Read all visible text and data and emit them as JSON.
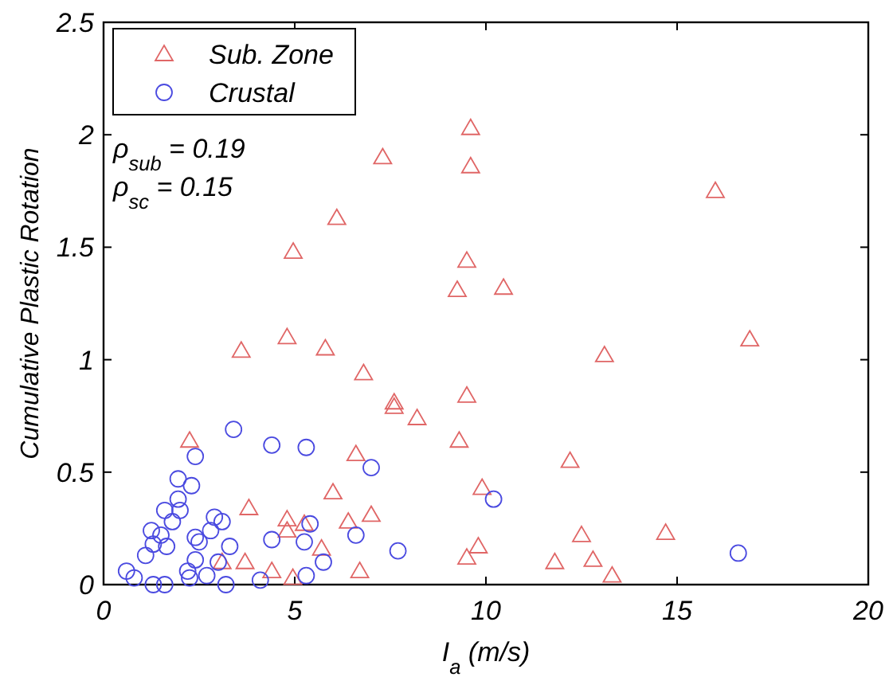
{
  "chart_data": {
    "type": "scatter",
    "xlabel": "I$_{a}$ (m/s)",
    "ylabel": "Cumulative Plastic Rotation",
    "xlim": [
      0,
      20
    ],
    "ylim": [
      0,
      2.5
    ],
    "xticks": [
      0,
      5,
      10,
      15,
      20
    ],
    "yticks": [
      0,
      0.5,
      1,
      1.5,
      2,
      2.5
    ],
    "grid": false,
    "legend": "top left",
    "annotations": [
      "ρ$_{sub}$ = 0.19",
      "ρ$_{sc}$ = 0.15"
    ],
    "series": [
      {
        "name": "Sub. Zone",
        "color": "#e06666",
        "marker": "triangle",
        "x": [
          9.6,
          7.3,
          9.6,
          6.1,
          4.96,
          9.5,
          9.25,
          16.0,
          10.46,
          3.6,
          4.8,
          5.8,
          6.8,
          7.6,
          7.6,
          8.2,
          9.5,
          2.25,
          9.3,
          6.6,
          6.0,
          3.8,
          7.0,
          4.8,
          4.8,
          5.25,
          6.4,
          5.7,
          3.7,
          3.1,
          4.4,
          6.7,
          4.95,
          9.9,
          9.8,
          9.5,
          16.9,
          13.1,
          12.2,
          12.5,
          14.7,
          11.8,
          12.8,
          13.3
        ],
        "values": [
          2.03,
          1.9,
          1.86,
          1.63,
          1.48,
          1.44,
          1.31,
          1.75,
          1.32,
          1.04,
          1.1,
          1.05,
          0.94,
          0.81,
          0.79,
          0.74,
          0.84,
          0.64,
          0.64,
          0.58,
          0.41,
          0.34,
          0.31,
          0.29,
          0.24,
          0.27,
          0.28,
          0.16,
          0.1,
          0.1,
          0.06,
          0.06,
          0.03,
          0.43,
          0.17,
          0.12,
          1.09,
          1.02,
          0.55,
          0.22,
          0.23,
          0.1,
          0.11,
          0.04
        ]
      },
      {
        "name": "Crustal",
        "color": "#4a4ae0",
        "marker": "circle",
        "x": [
          3.4,
          4.4,
          5.3,
          2.4,
          7.0,
          1.95,
          2.3,
          1.95,
          1.6,
          2.0,
          2.9,
          3.1,
          1.8,
          1.25,
          1.5,
          2.4,
          2.8,
          2.5,
          1.3,
          1.65,
          4.4,
          5.25,
          5.4,
          6.6,
          3.3,
          7.7,
          1.1,
          2.4,
          3.0,
          5.75,
          0.6,
          2.2,
          0.8,
          2.7,
          1.3,
          1.6,
          2.25,
          3.2,
          4.1,
          5.3,
          10.2,
          16.6
        ],
        "values": [
          0.69,
          0.62,
          0.61,
          0.57,
          0.52,
          0.47,
          0.44,
          0.38,
          0.33,
          0.33,
          0.3,
          0.28,
          0.28,
          0.24,
          0.22,
          0.21,
          0.24,
          0.19,
          0.18,
          0.17,
          0.2,
          0.19,
          0.27,
          0.22,
          0.17,
          0.15,
          0.13,
          0.11,
          0.1,
          0.1,
          0.06,
          0.06,
          0.03,
          0.04,
          0,
          0,
          0.03,
          0,
          0.02,
          0.04,
          0.38,
          0.14
        ]
      }
    ]
  }
}
